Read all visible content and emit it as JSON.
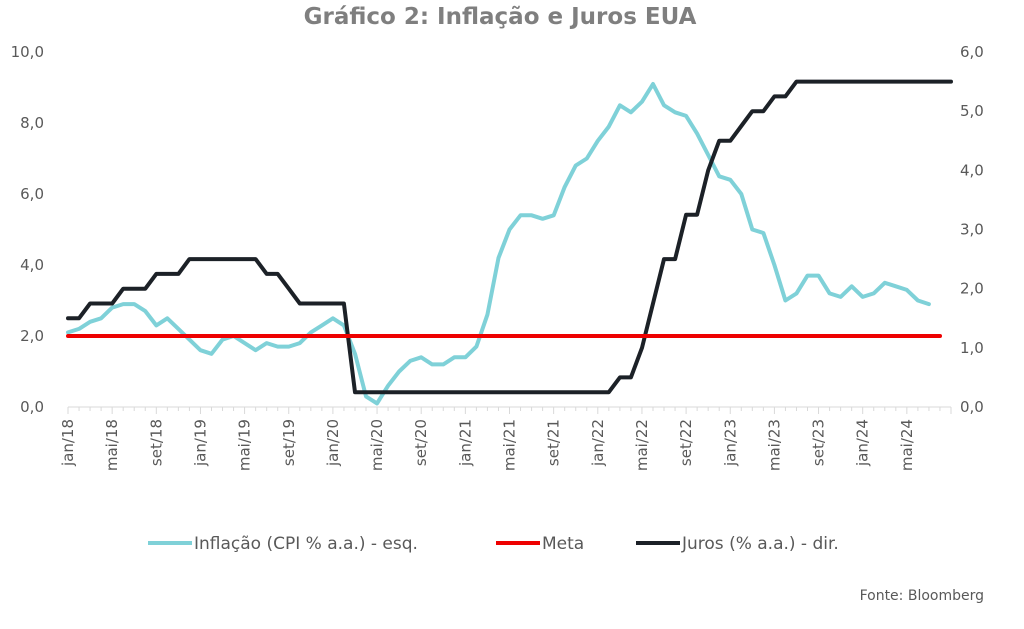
{
  "chart_data": {
    "type": "line",
    "title": "Gráfico 2: Inflação e Juros EUA",
    "source": "Fonte: Bloomberg",
    "y_left": {
      "min": 0,
      "max": 10,
      "ticks": [
        "0,0",
        "2,0",
        "4,0",
        "6,0",
        "8,0",
        "10,0"
      ]
    },
    "y_right": {
      "min": 0,
      "max": 6,
      "ticks": [
        "0,0",
        "1,0",
        "2,0",
        "3,0",
        "4,0",
        "5,0",
        "6,0"
      ]
    },
    "x_labels": [
      "jan/18",
      "mai/18",
      "set/18",
      "jan/19",
      "mai/19",
      "set/19",
      "jan/20",
      "mai/20",
      "set/20",
      "jan/21",
      "mai/21",
      "set/21",
      "jan/22",
      "mai/22",
      "set/22",
      "jan/23",
      "mai/23",
      "set/23",
      "jan/24",
      "mai/24"
    ],
    "x_start": "2018-01",
    "grid": false,
    "legend_position": "bottom",
    "series": [
      {
        "name": "Inflação (CPI % a.a.) - esq.",
        "axis": "left",
        "color": "#7fd1d8",
        "values": [
          2.1,
          2.2,
          2.4,
          2.5,
          2.8,
          2.9,
          2.9,
          2.7,
          2.3,
          2.5,
          2.2,
          1.9,
          1.6,
          1.5,
          1.9,
          2.0,
          1.8,
          1.6,
          1.8,
          1.7,
          1.7,
          1.8,
          2.1,
          2.3,
          2.5,
          2.3,
          1.5,
          0.3,
          0.1,
          0.6,
          1.0,
          1.3,
          1.4,
          1.2,
          1.2,
          1.4,
          1.4,
          1.7,
          2.6,
          4.2,
          5.0,
          5.4,
          5.4,
          5.3,
          5.4,
          6.2,
          6.8,
          7.0,
          7.5,
          7.9,
          8.5,
          8.3,
          8.6,
          9.1,
          8.5,
          8.3,
          8.2,
          7.7,
          7.1,
          6.5,
          6.4,
          6.0,
          5.0,
          4.9,
          4.0,
          3.0,
          3.2,
          3.7,
          3.7,
          3.2,
          3.1,
          3.4,
          3.1,
          3.2,
          3.5,
          3.4,
          3.3,
          3.0,
          2.9
        ],
        "x_values": [
          "2018-01",
          "2018-02",
          "2018-03",
          "2018-04",
          "2018-05",
          "2018-06",
          "2018-07",
          "2018-08",
          "2018-09",
          "2018-10",
          "2018-11",
          "2018-12",
          "2019-01",
          "2019-02",
          "2019-03",
          "2019-04",
          "2019-05",
          "2019-06",
          "2019-07",
          "2019-08",
          "2019-09",
          "2019-10",
          "2019-11",
          "2019-12",
          "2020-01",
          "2020-02",
          "2020-03",
          "2020-04",
          "2020-05",
          "2020-06",
          "2020-07",
          "2020-08",
          "2020-09",
          "2020-10",
          "2020-11",
          "2020-12",
          "2021-01",
          "2021-02",
          "2021-03",
          "2021-04",
          "2021-05",
          "2021-06",
          "2021-07",
          "2021-08",
          "2021-09",
          "2021-10",
          "2021-11",
          "2021-12",
          "2022-01",
          "2022-02",
          "2022-03",
          "2022-04",
          "2022-05",
          "2022-06",
          "2022-07",
          "2022-08",
          "2022-09",
          "2022-10",
          "2022-11",
          "2022-12",
          "2023-01",
          "2023-02",
          "2023-03",
          "2023-04",
          "2023-05",
          "2023-06",
          "2023-07",
          "2023-08",
          "2023-09",
          "2023-10",
          "2023-11",
          "2023-12",
          "2024-01",
          "2024-02",
          "2024-03",
          "2024-04",
          "2024-05",
          "2024-06",
          "2024-07"
        ]
      },
      {
        "name": "Meta",
        "axis": "left",
        "color": "#ee0000",
        "values": [
          2.0,
          2.0
        ],
        "x_values": [
          "2018-01",
          "2024-08"
        ]
      },
      {
        "name": "Juros (% a.a.) - dir.",
        "axis": "right",
        "color": "#1c2127",
        "values": [
          1.5,
          1.5,
          1.75,
          1.75,
          1.75,
          2.0,
          2.0,
          2.0,
          2.25,
          2.25,
          2.25,
          2.5,
          2.5,
          2.5,
          2.5,
          2.5,
          2.5,
          2.5,
          2.25,
          2.25,
          2.0,
          1.75,
          1.75,
          1.75,
          1.75,
          1.75,
          0.25,
          0.25,
          0.25,
          0.25,
          0.25,
          0.25,
          0.25,
          0.25,
          0.25,
          0.25,
          0.25,
          0.25,
          0.25,
          0.25,
          0.25,
          0.25,
          0.25,
          0.25,
          0.25,
          0.25,
          0.25,
          0.25,
          0.25,
          0.25,
          0.5,
          0.5,
          1.0,
          1.75,
          2.5,
          2.5,
          3.25,
          3.25,
          4.0,
          4.5,
          4.5,
          4.75,
          5.0,
          5.0,
          5.25,
          5.25,
          5.5,
          5.5,
          5.5,
          5.5,
          5.5,
          5.5,
          5.5,
          5.5,
          5.5,
          5.5,
          5.5,
          5.5,
          5.5,
          5.5,
          5.5
        ],
        "x_values": [
          "2018-01",
          "2018-02",
          "2018-03",
          "2018-04",
          "2018-05",
          "2018-06",
          "2018-07",
          "2018-08",
          "2018-09",
          "2018-10",
          "2018-11",
          "2018-12",
          "2019-01",
          "2019-02",
          "2019-03",
          "2019-04",
          "2019-05",
          "2019-06",
          "2019-07",
          "2019-08",
          "2019-09",
          "2019-10",
          "2019-11",
          "2019-12",
          "2020-01",
          "2020-02",
          "2020-03",
          "2020-04",
          "2020-05",
          "2020-06",
          "2020-07",
          "2020-08",
          "2020-09",
          "2020-10",
          "2020-11",
          "2020-12",
          "2021-01",
          "2021-02",
          "2021-03",
          "2021-04",
          "2021-05",
          "2021-06",
          "2021-07",
          "2021-08",
          "2021-09",
          "2021-10",
          "2021-11",
          "2021-12",
          "2022-01",
          "2022-02",
          "2022-03",
          "2022-04",
          "2022-05",
          "2022-06",
          "2022-07",
          "2022-08",
          "2022-09",
          "2022-10",
          "2022-11",
          "2022-12",
          "2023-01",
          "2023-02",
          "2023-03",
          "2023-04",
          "2023-05",
          "2023-06",
          "2023-07",
          "2023-08",
          "2023-09",
          "2023-10",
          "2023-11",
          "2023-12",
          "2024-01",
          "2024-02",
          "2024-03",
          "2024-04",
          "2024-05",
          "2024-06",
          "2024-07",
          "2024-08",
          "2024-09"
        ]
      }
    ]
  }
}
